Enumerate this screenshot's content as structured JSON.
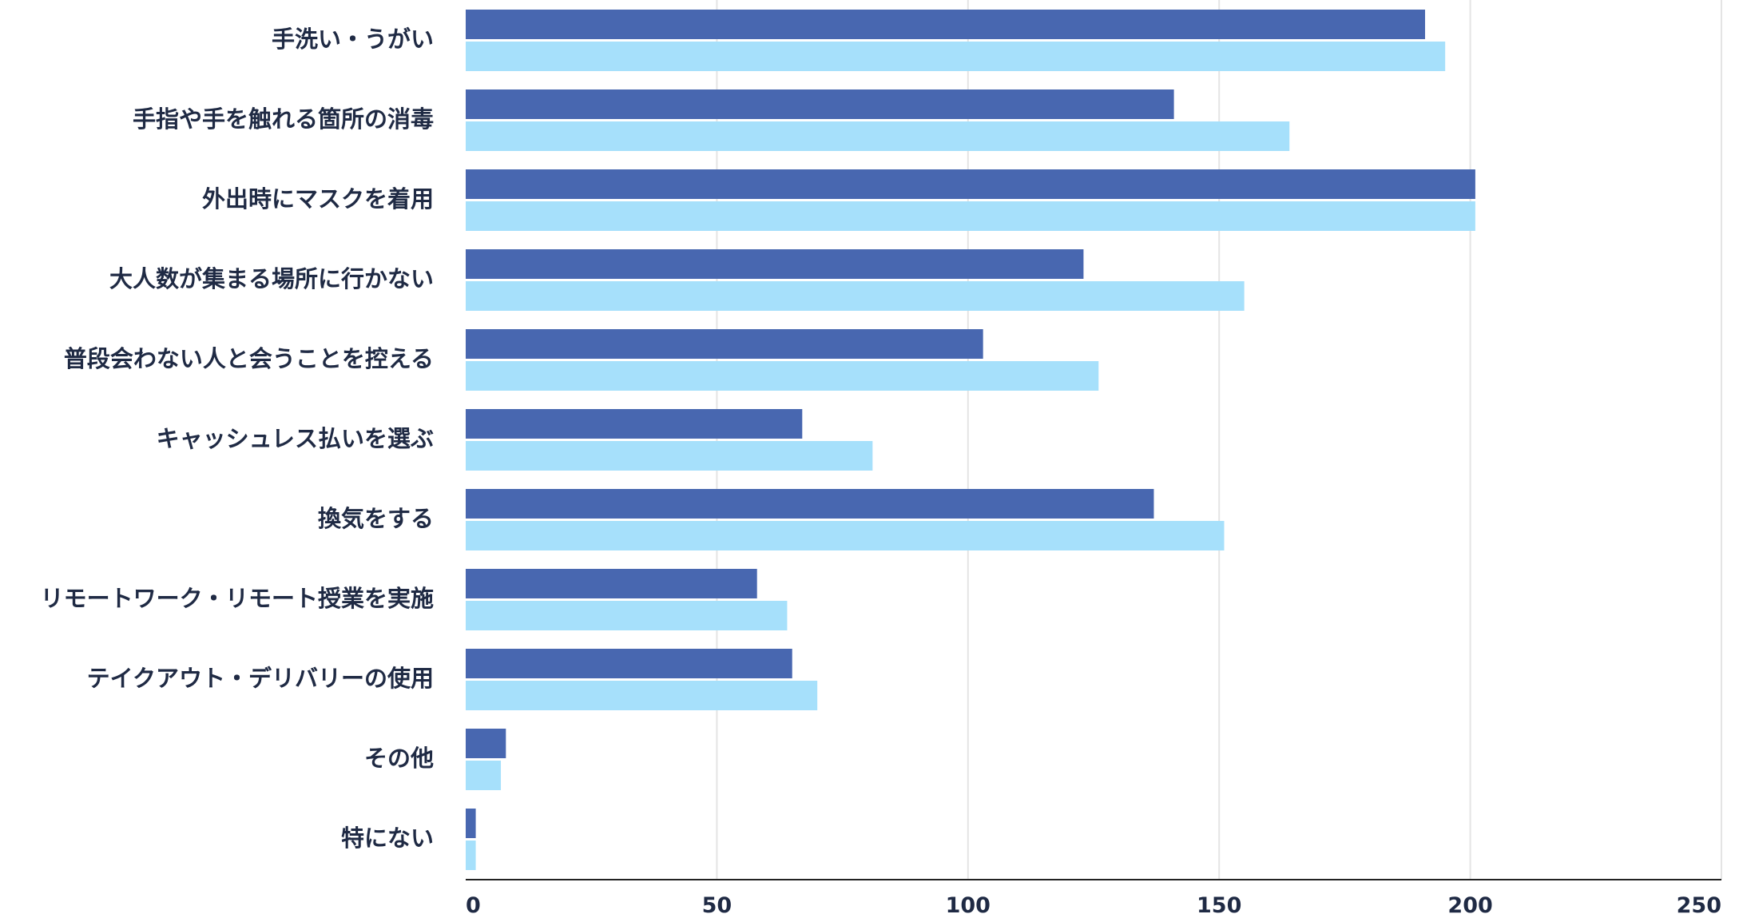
{
  "chart_data": {
    "type": "bar",
    "orientation": "horizontal",
    "title": "",
    "xlabel": "",
    "ylabel": "",
    "categories": [
      "手洗い・うがい",
      "手指や手を触れる箇所の消毒",
      "外出時にマスクを着用",
      "大人数が集まる場所に行かない",
      "普段会わない人と会うことを控える",
      "キャッシュレス払いを選ぶ",
      "換気をする",
      "リモートワーク・リモート授業を実施",
      "テイクアウト・デリバリーの使用",
      "その他",
      "特にない"
    ],
    "series": [
      {
        "color": "#4867b0",
        "values": [
          191,
          141,
          201,
          123,
          103,
          67,
          137,
          58,
          65,
          8,
          2
        ]
      },
      {
        "color": "#a6e0fb",
        "values": [
          195,
          164,
          201,
          155,
          126,
          81,
          151,
          64,
          70,
          7,
          2
        ]
      }
    ],
    "xlim": [
      0,
      250
    ],
    "xticks": [
      "0",
      "50",
      "100",
      "150",
      "200",
      "250"
    ],
    "grid": true,
    "legend": "none"
  }
}
